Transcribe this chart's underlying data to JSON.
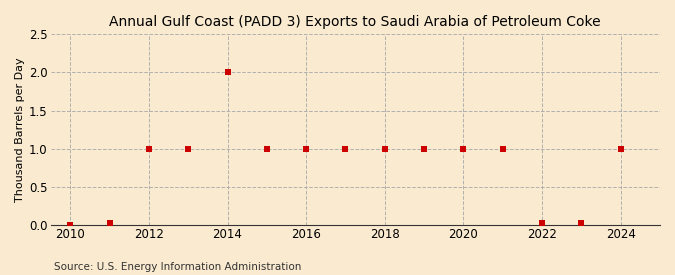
{
  "title": "Annual Gulf Coast (PADD 3) Exports to Saudi Arabia of Petroleum Coke",
  "ylabel": "Thousand Barrels per Day",
  "source": "Source: U.S. Energy Information Administration",
  "background_color": "#faebd0",
  "plot_bg_color": "#faebd0",
  "years": [
    2010,
    2011,
    2012,
    2013,
    2014,
    2015,
    2016,
    2017,
    2018,
    2019,
    2020,
    2021,
    2022,
    2023,
    2024
  ],
  "values": [
    0.0,
    0.03,
    1.0,
    1.0,
    2.0,
    1.0,
    1.0,
    1.0,
    1.0,
    1.0,
    1.0,
    1.0,
    0.03,
    0.03,
    1.0
  ],
  "marker_color": "#cc0000",
  "marker_size": 4,
  "xlim": [
    2009.5,
    2025
  ],
  "ylim": [
    0.0,
    2.5
  ],
  "yticks": [
    0.0,
    0.5,
    1.0,
    1.5,
    2.0,
    2.5
  ],
  "xticks": [
    2010,
    2012,
    2014,
    2016,
    2018,
    2020,
    2022,
    2024
  ],
  "grid_color": "#aaaaaa",
  "grid_style": "--",
  "title_fontsize": 10,
  "label_fontsize": 8,
  "source_fontsize": 7.5,
  "tick_fontsize": 8.5
}
